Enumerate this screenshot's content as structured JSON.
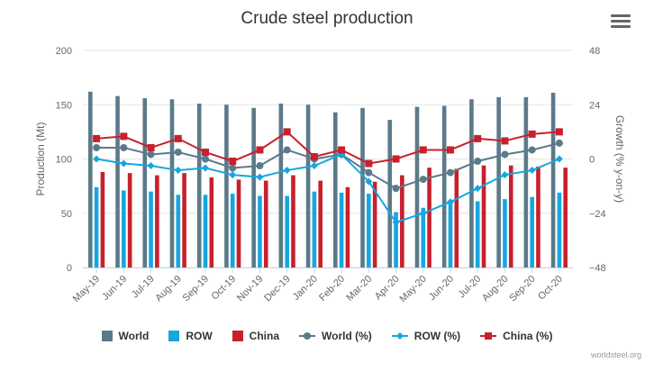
{
  "credits": "worldsteel.org",
  "chart_data": {
    "type": "bar",
    "title": "Crude steel production",
    "categories": [
      "May-19",
      "Jun-19",
      "Jul-19",
      "Aug-19",
      "Sep-19",
      "Oct-19",
      "Nov-19",
      "Dec-19",
      "Jan-20",
      "Feb-20",
      "Mar-20",
      "Apr-20",
      "May-20",
      "Jun-20",
      "Jul-20",
      "Aug-20",
      "Sep-20",
      "Oct-20"
    ],
    "ylabel": "Production (Mt)",
    "y2label": "Growth (% y-on-y)",
    "ylim": [
      0,
      200
    ],
    "y2lim": [
      -48,
      48
    ],
    "yticks": [
      "0",
      "50",
      "100",
      "150",
      "200"
    ],
    "y2ticks": [
      "−48",
      "−24",
      "0",
      "24",
      "48"
    ],
    "grid": true,
    "legend_position": "bottom",
    "series": [
      {
        "name": "World",
        "kind": "bar",
        "axis": "left",
        "color": "#5b7a89",
        "values": [
          162,
          158,
          156,
          155,
          151,
          150,
          147,
          151,
          150,
          143,
          147,
          136,
          148,
          149,
          155,
          157,
          157,
          161
        ]
      },
      {
        "name": "ROW",
        "kind": "bar",
        "axis": "left",
        "color": "#16a6e0",
        "values": [
          74,
          71,
          70,
          67,
          67,
          68,
          66,
          66,
          70,
          69,
          68,
          51,
          55,
          59,
          61,
          63,
          65,
          69
        ]
      },
      {
        "name": "China",
        "kind": "bar",
        "axis": "left",
        "color": "#c8202d",
        "values": [
          88,
          87,
          85,
          87,
          83,
          81,
          80,
          85,
          80,
          74,
          79,
          85,
          92,
          91,
          94,
          94,
          93,
          92
        ]
      },
      {
        "name": "World (%)",
        "kind": "line",
        "axis": "right",
        "color": "#5b7a89",
        "values": [
          5,
          5,
          2,
          3,
          0,
          -4,
          -3,
          4,
          0,
          2,
          -6,
          -13,
          -9,
          -6,
          -1,
          2,
          4,
          7
        ]
      },
      {
        "name": "ROW (%)",
        "kind": "line",
        "axis": "right",
        "color": "#16a6e0",
        "values": [
          0,
          -2,
          -3,
          -5,
          -4,
          -7,
          -8,
          -5,
          -3,
          2,
          -10,
          -28,
          -24,
          -19,
          -13,
          -7,
          -5,
          0
        ]
      },
      {
        "name": "China (%)",
        "kind": "line",
        "axis": "right",
        "color": "#c8202d",
        "values": [
          9,
          10,
          5,
          9,
          3,
          -1,
          4,
          12,
          1,
          4,
          -2,
          0,
          4,
          4,
          9,
          8,
          11,
          12
        ]
      }
    ]
  }
}
